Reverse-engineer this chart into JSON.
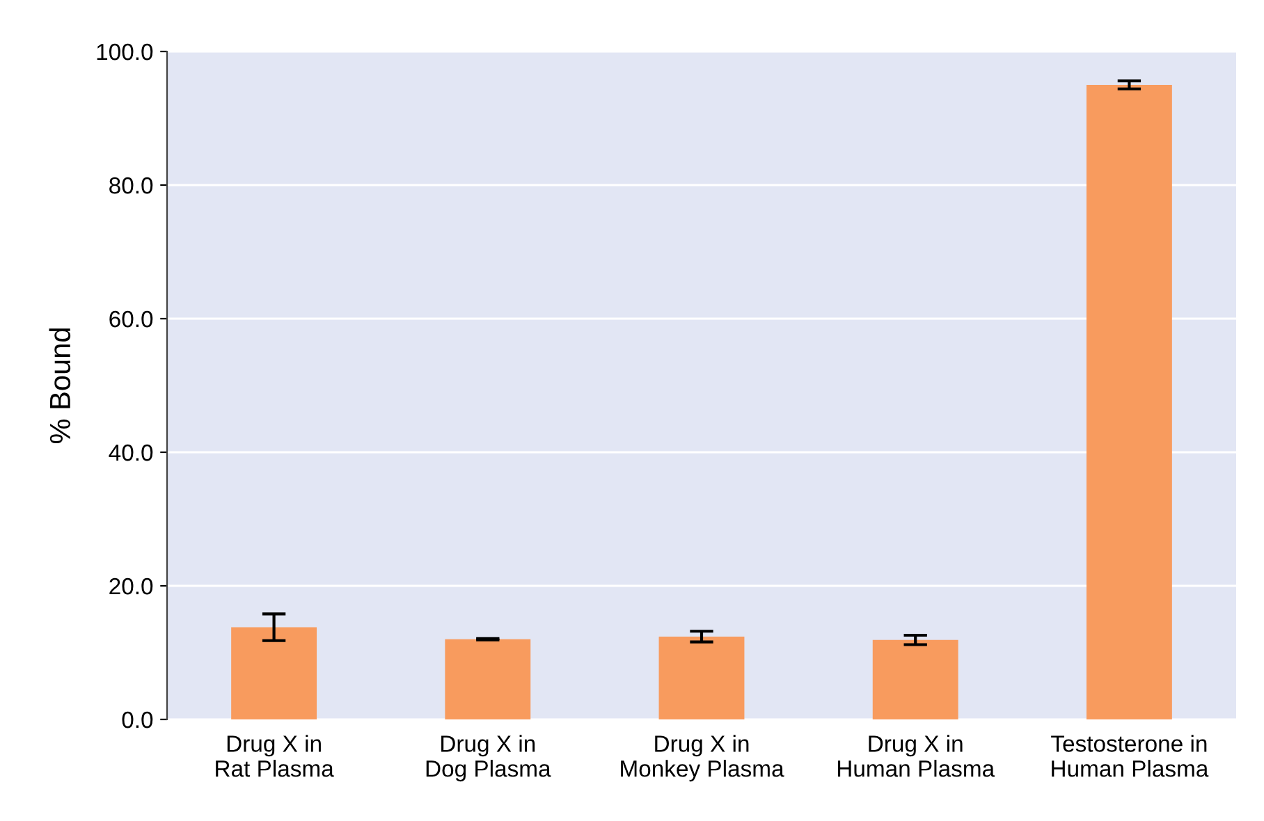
{
  "chart_data": {
    "type": "bar",
    "ylabel": "% Bound",
    "categories": [
      "Drug X in\nRat Plasma",
      "Drug X in\nDog Plasma",
      "Drug X in\nMonkey Plasma",
      "Drug X in\nHuman Plasma",
      "Testosterone in\nHuman Plasma"
    ],
    "values": [
      13.8,
      12.0,
      12.4,
      11.9,
      95.0
    ],
    "errors": [
      2.0,
      0.1,
      0.8,
      0.7,
      0.6
    ],
    "color": "#f89b5e",
    "ylim": [
      0,
      100
    ],
    "yticks": [
      {
        "value": 0,
        "label": "0.0"
      },
      {
        "value": 20,
        "label": "20.0"
      },
      {
        "value": 40,
        "label": "40.0"
      },
      {
        "value": 60,
        "label": "60.0"
      },
      {
        "value": 80,
        "label": "80.0"
      },
      {
        "value": 100,
        "label": "100.0"
      }
    ],
    "grid": "y"
  }
}
